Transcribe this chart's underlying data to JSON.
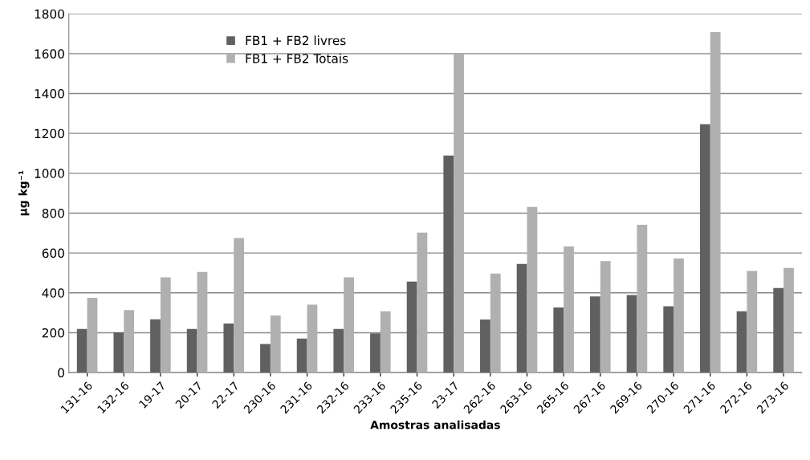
{
  "chart_data": {
    "type": "bar",
    "xlabel": "Amostras analisadas",
    "ylabel": "µg kg⁻¹",
    "categories": [
      "131-16",
      "132-16",
      "19-17",
      "20-17",
      "22-17",
      "230-16",
      "231-16",
      "232-16",
      "233-16",
      "235-16",
      "23-17",
      "262-16",
      "263-16",
      "265-16",
      "267-16",
      "269-16",
      "270-16",
      "271-16",
      "272-16",
      "273-16"
    ],
    "series": [
      {
        "name": "FB1 + FB2 livres",
        "color": "#606060",
        "values": [
          219,
          202,
          267,
          219,
          246,
          143,
          171,
          219,
          197,
          457,
          1089,
          266,
          545,
          327,
          382,
          389,
          333,
          1246,
          308,
          424
        ]
      },
      {
        "name": "FB1 + FB2 Totais",
        "color": "#b0b0b0",
        "values": [
          375,
          314,
          478,
          505,
          675,
          286,
          341,
          478,
          308,
          702,
          1599,
          497,
          831,
          633,
          559,
          742,
          572,
          1708,
          510,
          525
        ]
      }
    ],
    "ylim": [
      0,
      1800
    ],
    "yticks": [
      0,
      200,
      400,
      600,
      800,
      1000,
      1200,
      1400,
      1600,
      1800
    ],
    "grid": "y",
    "legend": "top left"
  }
}
